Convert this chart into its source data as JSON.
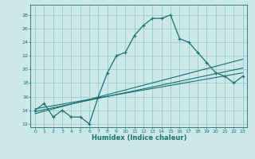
{
  "title": "",
  "xlabel": "Humidex (Indice chaleur)",
  "ylabel": "",
  "bg_color": "#cce8e8",
  "grid_color": "#99cccc",
  "line_color": "#1a7070",
  "xlim": [
    -0.5,
    23.5
  ],
  "ylim": [
    11.5,
    29.5
  ],
  "xticks": [
    0,
    1,
    2,
    3,
    4,
    5,
    6,
    7,
    8,
    9,
    10,
    11,
    12,
    13,
    14,
    15,
    16,
    17,
    18,
    19,
    20,
    21,
    22,
    23
  ],
  "yticks": [
    12,
    14,
    16,
    18,
    20,
    22,
    24,
    26,
    28
  ],
  "main_x": [
    0,
    1,
    2,
    3,
    4,
    5,
    6,
    7,
    8,
    9,
    10,
    11,
    12,
    13,
    14,
    15,
    16,
    17,
    18,
    19,
    20,
    21,
    22,
    23
  ],
  "main_y": [
    14,
    15,
    13,
    14,
    13,
    13,
    12,
    16,
    19.5,
    22,
    22.5,
    25,
    26.5,
    27.5,
    27.5,
    28,
    24.5,
    24,
    22.5,
    21,
    19.5,
    19,
    18,
    19
  ],
  "line1_x": [
    0,
    23
  ],
  "line1_y": [
    13.5,
    21.5
  ],
  "line2_x": [
    0,
    23
  ],
  "line2_y": [
    13.8,
    20.2
  ],
  "line3_x": [
    0,
    23
  ],
  "line3_y": [
    14.2,
    19.5
  ]
}
